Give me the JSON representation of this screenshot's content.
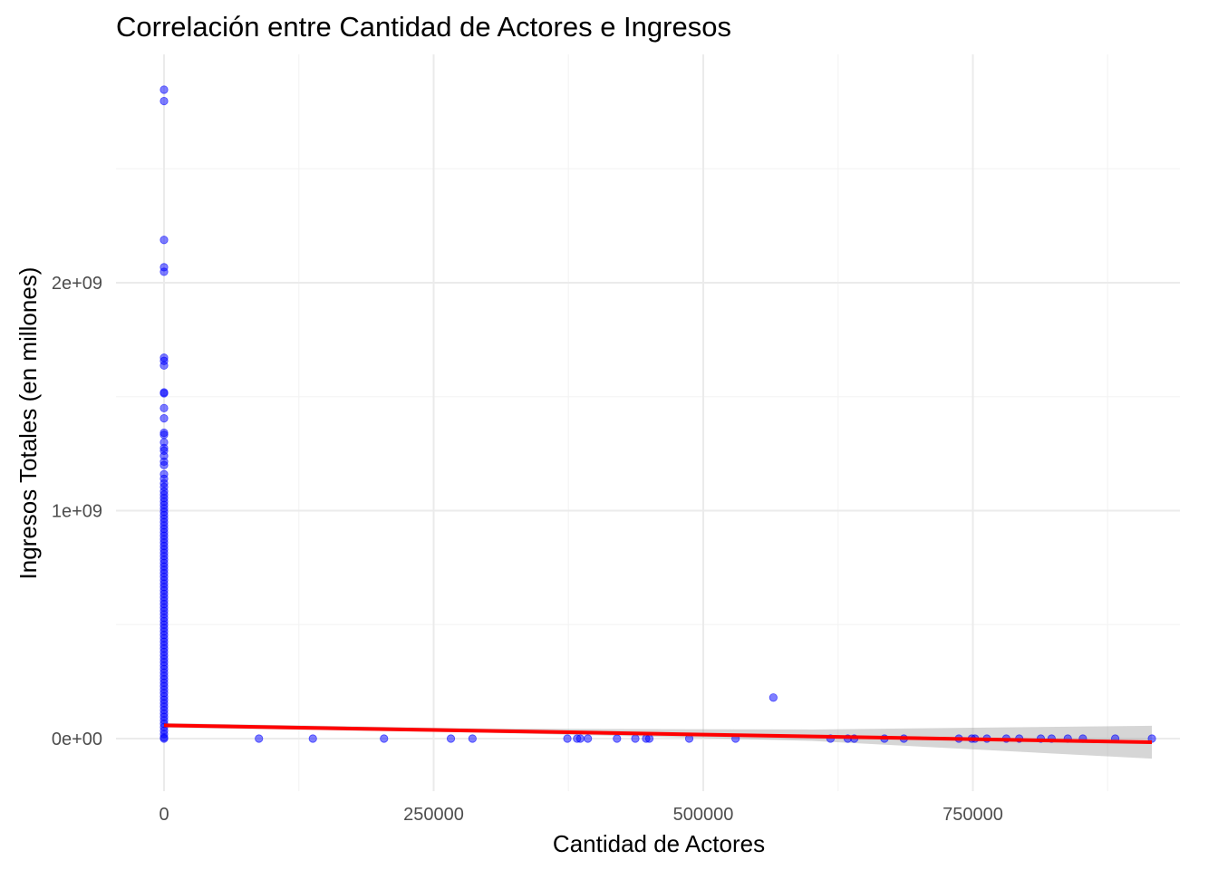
{
  "chart_data": {
    "type": "scatter",
    "title": "Correlación entre Cantidad de Actores e Ingresos",
    "xlabel": "Cantidad de Actores",
    "ylabel": "Ingresos Totales (en millones)",
    "xlim": [
      -45000,
      930000
    ],
    "ylim": [
      -230000000,
      2900000000
    ],
    "x_ticks": [
      0,
      250000,
      500000,
      750000
    ],
    "x_tick_labels": [
      "0",
      "250000",
      "500000",
      "750000"
    ],
    "y_ticks": [
      0,
      1000000000,
      2000000000
    ],
    "y_tick_labels": [
      "0e+00",
      "1e+09",
      "2e+09"
    ],
    "grid": true,
    "point_color": "#0000ff",
    "line_color": "#ff0000",
    "band_color": "#999999",
    "series": [
      {
        "points": [
          [
            0,
            2847000000
          ],
          [
            0,
            2797000000
          ],
          [
            0,
            2188000000
          ],
          [
            0,
            2068000000
          ],
          [
            0,
            2048000000
          ],
          [
            0,
            1671000000
          ],
          [
            0,
            1657000000
          ],
          [
            0,
            1637000000
          ],
          [
            0,
            1519000000
          ],
          [
            0,
            1515000000
          ],
          [
            0,
            1450000000
          ],
          [
            0,
            1405000000
          ],
          [
            0,
            1342000000
          ],
          [
            0,
            1333000000
          ],
          [
            0,
            1300000000
          ],
          [
            0,
            1275000000
          ],
          [
            0,
            1263000000
          ],
          [
            0,
            1240000000
          ],
          [
            0,
            1215000000
          ],
          [
            0,
            1200000000
          ],
          [
            0,
            1160000000
          ],
          [
            0,
            1140000000
          ],
          [
            0,
            1120000000
          ],
          [
            0,
            1104000000
          ],
          [
            0,
            1085000000
          ],
          [
            0,
            1070000000
          ],
          [
            0,
            1055000000
          ],
          [
            0,
            1040000000
          ],
          [
            0,
            1025000000
          ],
          [
            0,
            1010000000
          ],
          [
            0,
            995000000
          ],
          [
            0,
            980000000
          ],
          [
            0,
            965000000
          ],
          [
            0,
            950000000
          ],
          [
            0,
            935000000
          ],
          [
            0,
            920000000
          ],
          [
            0,
            905000000
          ],
          [
            0,
            890000000
          ],
          [
            0,
            875000000
          ],
          [
            0,
            860000000
          ],
          [
            0,
            845000000
          ],
          [
            0,
            830000000
          ],
          [
            0,
            815000000
          ],
          [
            0,
            800000000
          ],
          [
            0,
            785000000
          ],
          [
            0,
            770000000
          ],
          [
            0,
            755000000
          ],
          [
            0,
            740000000
          ],
          [
            0,
            725000000
          ],
          [
            0,
            710000000
          ],
          [
            0,
            695000000
          ],
          [
            0,
            680000000
          ],
          [
            0,
            665000000
          ],
          [
            0,
            650000000
          ],
          [
            0,
            635000000
          ],
          [
            0,
            620000000
          ],
          [
            0,
            605000000
          ],
          [
            0,
            590000000
          ],
          [
            0,
            575000000
          ],
          [
            0,
            560000000
          ],
          [
            0,
            545000000
          ],
          [
            0,
            530000000
          ],
          [
            0,
            515000000
          ],
          [
            0,
            500000000
          ],
          [
            0,
            485000000
          ],
          [
            0,
            470000000
          ],
          [
            0,
            455000000
          ],
          [
            0,
            440000000
          ],
          [
            0,
            425000000
          ],
          [
            0,
            410000000
          ],
          [
            0,
            395000000
          ],
          [
            0,
            380000000
          ],
          [
            0,
            365000000
          ],
          [
            0,
            350000000
          ],
          [
            0,
            335000000
          ],
          [
            0,
            320000000
          ],
          [
            0,
            305000000
          ],
          [
            0,
            290000000
          ],
          [
            0,
            275000000
          ],
          [
            0,
            260000000
          ],
          [
            0,
            245000000
          ],
          [
            0,
            230000000
          ],
          [
            0,
            215000000
          ],
          [
            0,
            200000000
          ],
          [
            0,
            185000000
          ],
          [
            0,
            170000000
          ],
          [
            0,
            155000000
          ],
          [
            0,
            140000000
          ],
          [
            0,
            125000000
          ],
          [
            0,
            110000000
          ],
          [
            0,
            95000000
          ],
          [
            0,
            80000000
          ],
          [
            0,
            65000000
          ],
          [
            0,
            50000000
          ],
          [
            0,
            35000000
          ],
          [
            0,
            20000000
          ],
          [
            0,
            5000000
          ],
          [
            0,
            0
          ],
          [
            88000,
            0
          ],
          [
            138000,
            0
          ],
          [
            204000,
            0
          ],
          [
            266000,
            0
          ],
          [
            286000,
            0
          ],
          [
            374000,
            0
          ],
          [
            383000,
            0
          ],
          [
            386000,
            0
          ],
          [
            393000,
            0
          ],
          [
            420000,
            0
          ],
          [
            437000,
            0
          ],
          [
            447000,
            0
          ],
          [
            450000,
            0
          ],
          [
            487000,
            0
          ],
          [
            530000,
            0
          ],
          [
            565000,
            180000000
          ],
          [
            618000,
            0
          ],
          [
            634000,
            0
          ],
          [
            640000,
            0
          ],
          [
            668000,
            0
          ],
          [
            686000,
            0
          ],
          [
            737000,
            0
          ],
          [
            749000,
            0
          ],
          [
            752000,
            0
          ],
          [
            763000,
            0
          ],
          [
            781000,
            0
          ],
          [
            793000,
            0
          ],
          [
            813000,
            0
          ],
          [
            823000,
            0
          ],
          [
            838000,
            0
          ],
          [
            852000,
            0
          ],
          [
            882000,
            0
          ],
          [
            916000,
            0
          ]
        ]
      }
    ],
    "fit_line": {
      "x": [
        0,
        916000
      ],
      "y": [
        58000000,
        -16000000
      ]
    },
    "confidence_band": {
      "x": [
        0,
        300000,
        600000,
        916000
      ],
      "lower": [
        48000000,
        26000000,
        -10000000,
        -88000000
      ],
      "upper": [
        68000000,
        44000000,
        40000000,
        56000000
      ]
    }
  }
}
